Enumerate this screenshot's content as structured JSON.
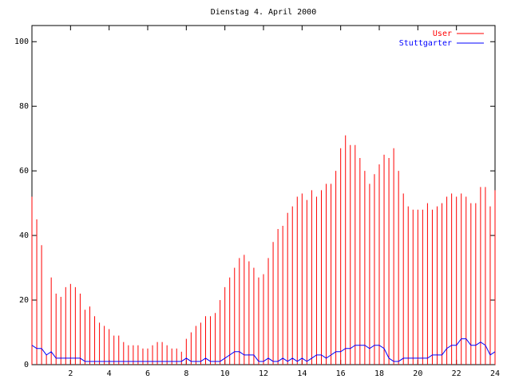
{
  "chart_data": {
    "type": "impulse-line",
    "title": "Dienstag 4. April 2000",
    "x": [
      0,
      0.25,
      0.5,
      0.75,
      1,
      1.25,
      1.5,
      1.75,
      2,
      2.25,
      2.5,
      2.75,
      3,
      3.25,
      3.5,
      3.75,
      4,
      4.25,
      4.5,
      4.75,
      5,
      5.25,
      5.5,
      5.75,
      6,
      6.25,
      6.5,
      6.75,
      7,
      7.25,
      7.5,
      7.75,
      8,
      8.25,
      8.5,
      8.75,
      9,
      9.25,
      9.5,
      9.75,
      10,
      10.25,
      10.5,
      10.75,
      11,
      11.25,
      11.5,
      11.75,
      12,
      12.25,
      12.5,
      12.75,
      13,
      13.25,
      13.5,
      13.75,
      14,
      14.25,
      14.5,
      14.75,
      15,
      15.25,
      15.5,
      15.75,
      16,
      16.25,
      16.5,
      16.75,
      17,
      17.25,
      17.5,
      17.75,
      18,
      18.25,
      18.5,
      18.75,
      19,
      19.25,
      19.5,
      19.75,
      20,
      20.25,
      20.5,
      20.75,
      21,
      21.25,
      21.5,
      21.75,
      22,
      22.25,
      22.5,
      22.75,
      23,
      23.25,
      23.5,
      23.75,
      24
    ],
    "series": [
      {
        "name": "User",
        "color": "#ff0000",
        "style": "impulses",
        "values": [
          52,
          45,
          37,
          3,
          27,
          22,
          21,
          24,
          25,
          24,
          22,
          17,
          18,
          15,
          13,
          12,
          11,
          9,
          9,
          7,
          6,
          6,
          6,
          5,
          5,
          6,
          7,
          7,
          6,
          5,
          5,
          4,
          8,
          10,
          12,
          13,
          15,
          15,
          16,
          20,
          24,
          27,
          30,
          33,
          34,
          32,
          30,
          27,
          28,
          33,
          38,
          42,
          43,
          47,
          49,
          52,
          53,
          51,
          54,
          52,
          54,
          56,
          56,
          60,
          67,
          71,
          68,
          68,
          64,
          60,
          56,
          59,
          62,
          65,
          64,
          67,
          60,
          53,
          49,
          48,
          48,
          48,
          50,
          48,
          49,
          50,
          52,
          53,
          52,
          53,
          52,
          50,
          50,
          55,
          55,
          49,
          54
        ]
      },
      {
        "name": "Stuttgarter",
        "color": "#0000ff",
        "style": "line",
        "values": [
          6,
          5,
          5,
          3,
          4,
          2,
          2,
          2,
          2,
          2,
          2,
          1,
          1,
          1,
          1,
          1,
          1,
          1,
          1,
          1,
          1,
          1,
          1,
          1,
          1,
          1,
          1,
          1,
          1,
          1,
          1,
          1,
          2,
          1,
          1,
          1,
          2,
          1,
          1,
          1,
          2,
          3,
          4,
          4,
          3,
          3,
          3,
          1,
          1,
          2,
          1,
          1,
          2,
          1,
          2,
          1,
          2,
          1,
          2,
          3,
          3,
          2,
          3,
          4,
          4,
          5,
          5,
          6,
          6,
          6,
          5,
          6,
          6,
          5,
          2,
          1,
          1,
          2,
          2,
          2,
          2,
          2,
          2,
          3,
          3,
          3,
          5,
          6,
          6,
          8,
          8,
          6,
          6,
          7,
          6,
          3,
          4
        ]
      }
    ],
    "xlim": [
      0,
      24
    ],
    "ylim": [
      0,
      105
    ],
    "xticks": [
      2,
      4,
      6,
      8,
      10,
      12,
      14,
      16,
      18,
      20,
      22,
      24
    ],
    "yticks": [
      0,
      20,
      40,
      60,
      80,
      100
    ],
    "legend": "top right"
  }
}
